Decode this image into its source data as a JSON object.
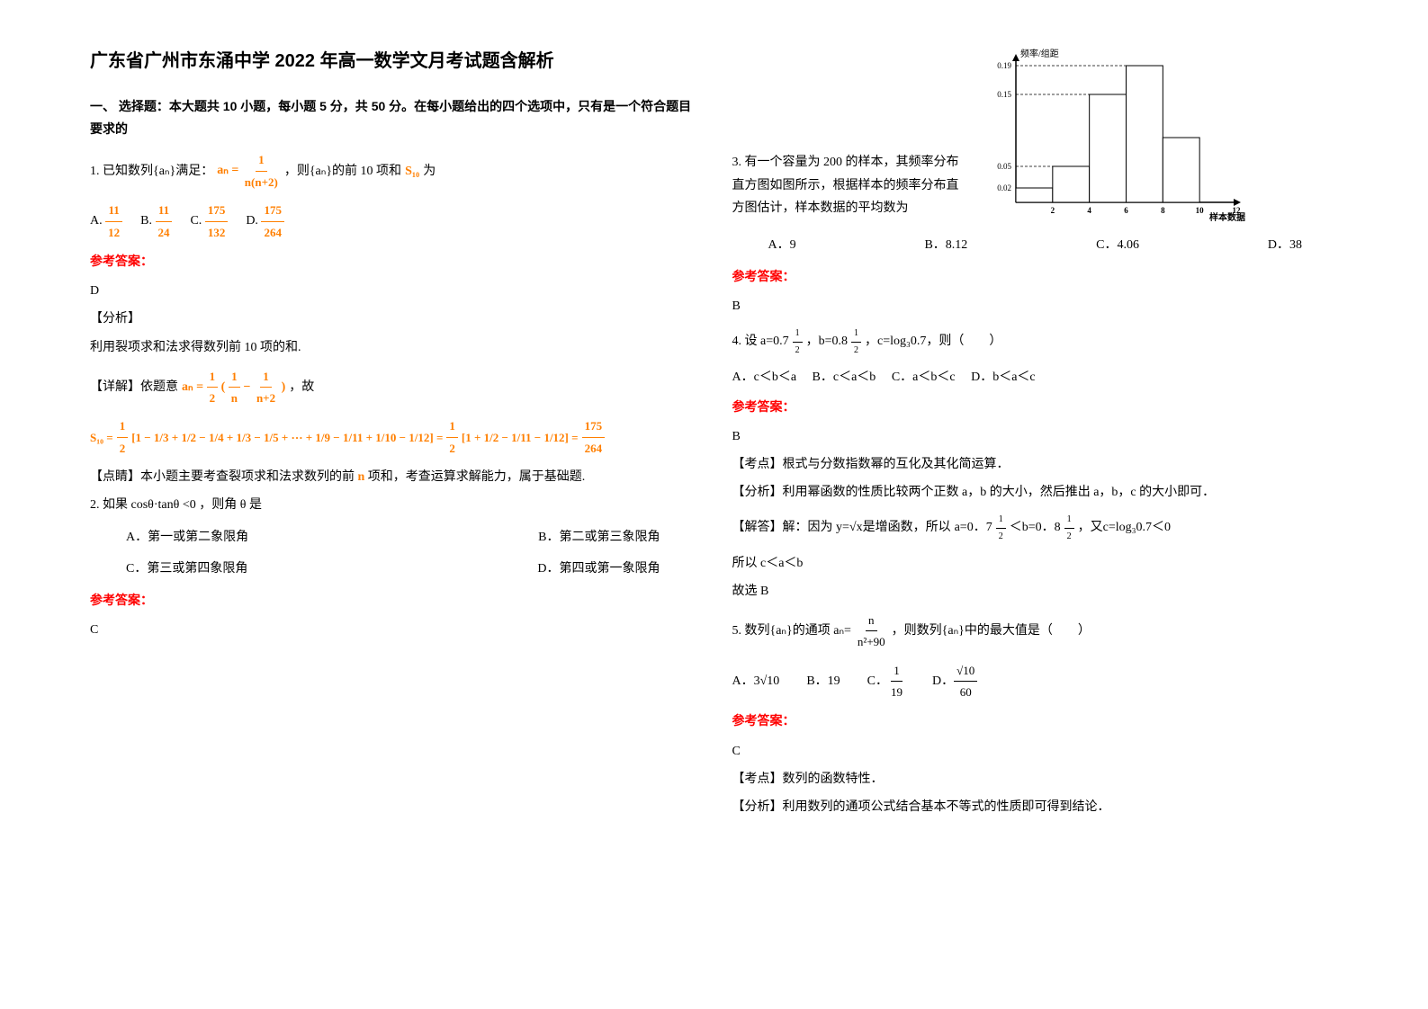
{
  "title": "广东省广州市东涌中学 2022 年高一数学文月考试题含解析",
  "section1_header": "一、 选择题：本大题共 10 小题，每小题 5 分，共 50 分。在每小题给出的四个选项中，只有是一个符合题目要求的",
  "answer_label": "参考答案：",
  "q1": {
    "prefix": "1. 已知数列{aₙ}满足：",
    "formula_lhs": "aₙ =",
    "formula_num": "1",
    "formula_den": "n(n+2)",
    "suffix": "，则{aₙ}的前 10 项和",
    "s10": "S₁₀",
    "suffix2": "为",
    "opts_prefixes": [
      "A.",
      "B.",
      "C.",
      "D."
    ],
    "opts_num": [
      "11",
      "11",
      "175",
      "175"
    ],
    "opts_den": [
      "12",
      "24",
      "132",
      "264"
    ],
    "answer": "D",
    "analysis_label": "【分析】",
    "analysis_text": "利用裂项求和法求得数列前 10 项的和.",
    "detail_label": "【详解】依题意",
    "detail_formula_a": "aₙ =",
    "detail_half": "1",
    "detail_half_den": "2",
    "detail_paren_l": "(",
    "detail_frac1_num": "1",
    "detail_frac1_den": "n",
    "detail_minus": "−",
    "detail_frac2_num": "1",
    "detail_frac2_den": "n+2",
    "detail_paren_r": ")",
    "detail_suffix": "，故",
    "s10_long_lhs": "S₁₀ =",
    "s10_terms": "[1 − 1/3 + 1/2 − 1/4 + 1/3 − 1/5 + ··· + 1/9 − 1/11 + 1/10 − 1/12] = ",
    "s10_mid": "[1 + 1/2 − 1/11 − 1/12] =",
    "s10_result_num": "175",
    "s10_result_den": "264",
    "comment_label": "【点睛】本小题主要考查裂项求和法求数列的前",
    "comment_n": "n",
    "comment_suffix": "项和，考查运算求解能力，属于基础题."
  },
  "q2": {
    "text": "2. 如果 cosθ·tanθ <0 ，则角 θ 是",
    "optA": "A．第一或第二象限角",
    "optB": "B．第二或第三象限角",
    "optC": "C．第三或第四象限角",
    "optD": "D．第四或第一象限角",
    "answer": "C"
  },
  "q3": {
    "text": "3. 有一个容量为 200 的样本，其频率分布直方图如图所示，根据样本的频率分布直方图估计，样本数据的平均数为",
    "chart": {
      "ylabel": "频率/组距",
      "xlabel": "样本数据",
      "ytick_values": [
        0.02,
        0.05,
        0.15,
        0.19
      ],
      "ytick_labels": [
        "0.02",
        "0.05",
        "0.15",
        "0.19"
      ],
      "xtick_labels": [
        "2",
        "4",
        "6",
        "8",
        "10",
        "12"
      ],
      "bars": [
        0.02,
        0.05,
        0.15,
        0.19,
        0.09
      ],
      "bar_color": "#ffffff",
      "bar_border": "#000000",
      "axis_color": "#000000",
      "dash_color": "#000000"
    },
    "optA": "A．9",
    "optB": "B．8.12",
    "optC": "C．4.06",
    "optD": "D．38",
    "answer": "B"
  },
  "q4": {
    "prefix": "4. 设 a=0.7",
    "exp_num": "1",
    "exp_den": "2",
    "mid1": "，b=0.8",
    "mid2": "，c=log₃0.7，则（　　）",
    "optA": "A．c＜b＜a",
    "optB": "B．c＜a＜b",
    "optC": "C．a＜b＜c",
    "optD": "D．b＜a＜c",
    "answer": "B",
    "kd_label": "【考点】根式与分数指数幂的互化及其化简运算．",
    "fx_label": "【分析】利用幂函数的性质比较两个正数 a，b 的大小，然后推出 a，b，c 的大小即可．",
    "jd_label": "【解答】解：因为 y=√x是增函数，所以",
    "jd_a": "a=0．7",
    "jd_lt1": "＜b=0．8",
    "jd_c": "，又c=log₃0.7＜0",
    "jd_concl1": "所以 c＜a＜b",
    "jd_concl2": "故选 B"
  },
  "q5": {
    "prefix": "5. 数列{aₙ}的通项 aₙ=",
    "frac_num": "n",
    "frac_den": "n²+90",
    "suffix": "，则数列{aₙ}中的最大值是（　　）",
    "optA_pre": "A．3",
    "optA_sqrt": "√10",
    "optB": "B．19",
    "optC_pre": "C．",
    "optC_num": "1",
    "optC_den": "19",
    "optD_pre": "D．",
    "optD_num": "√10",
    "optD_den": "60",
    "answer": "C",
    "kd": "【考点】数列的函数特性．",
    "fx": "【分析】利用数列的通项公式结合基本不等式的性质即可得到结论．"
  }
}
